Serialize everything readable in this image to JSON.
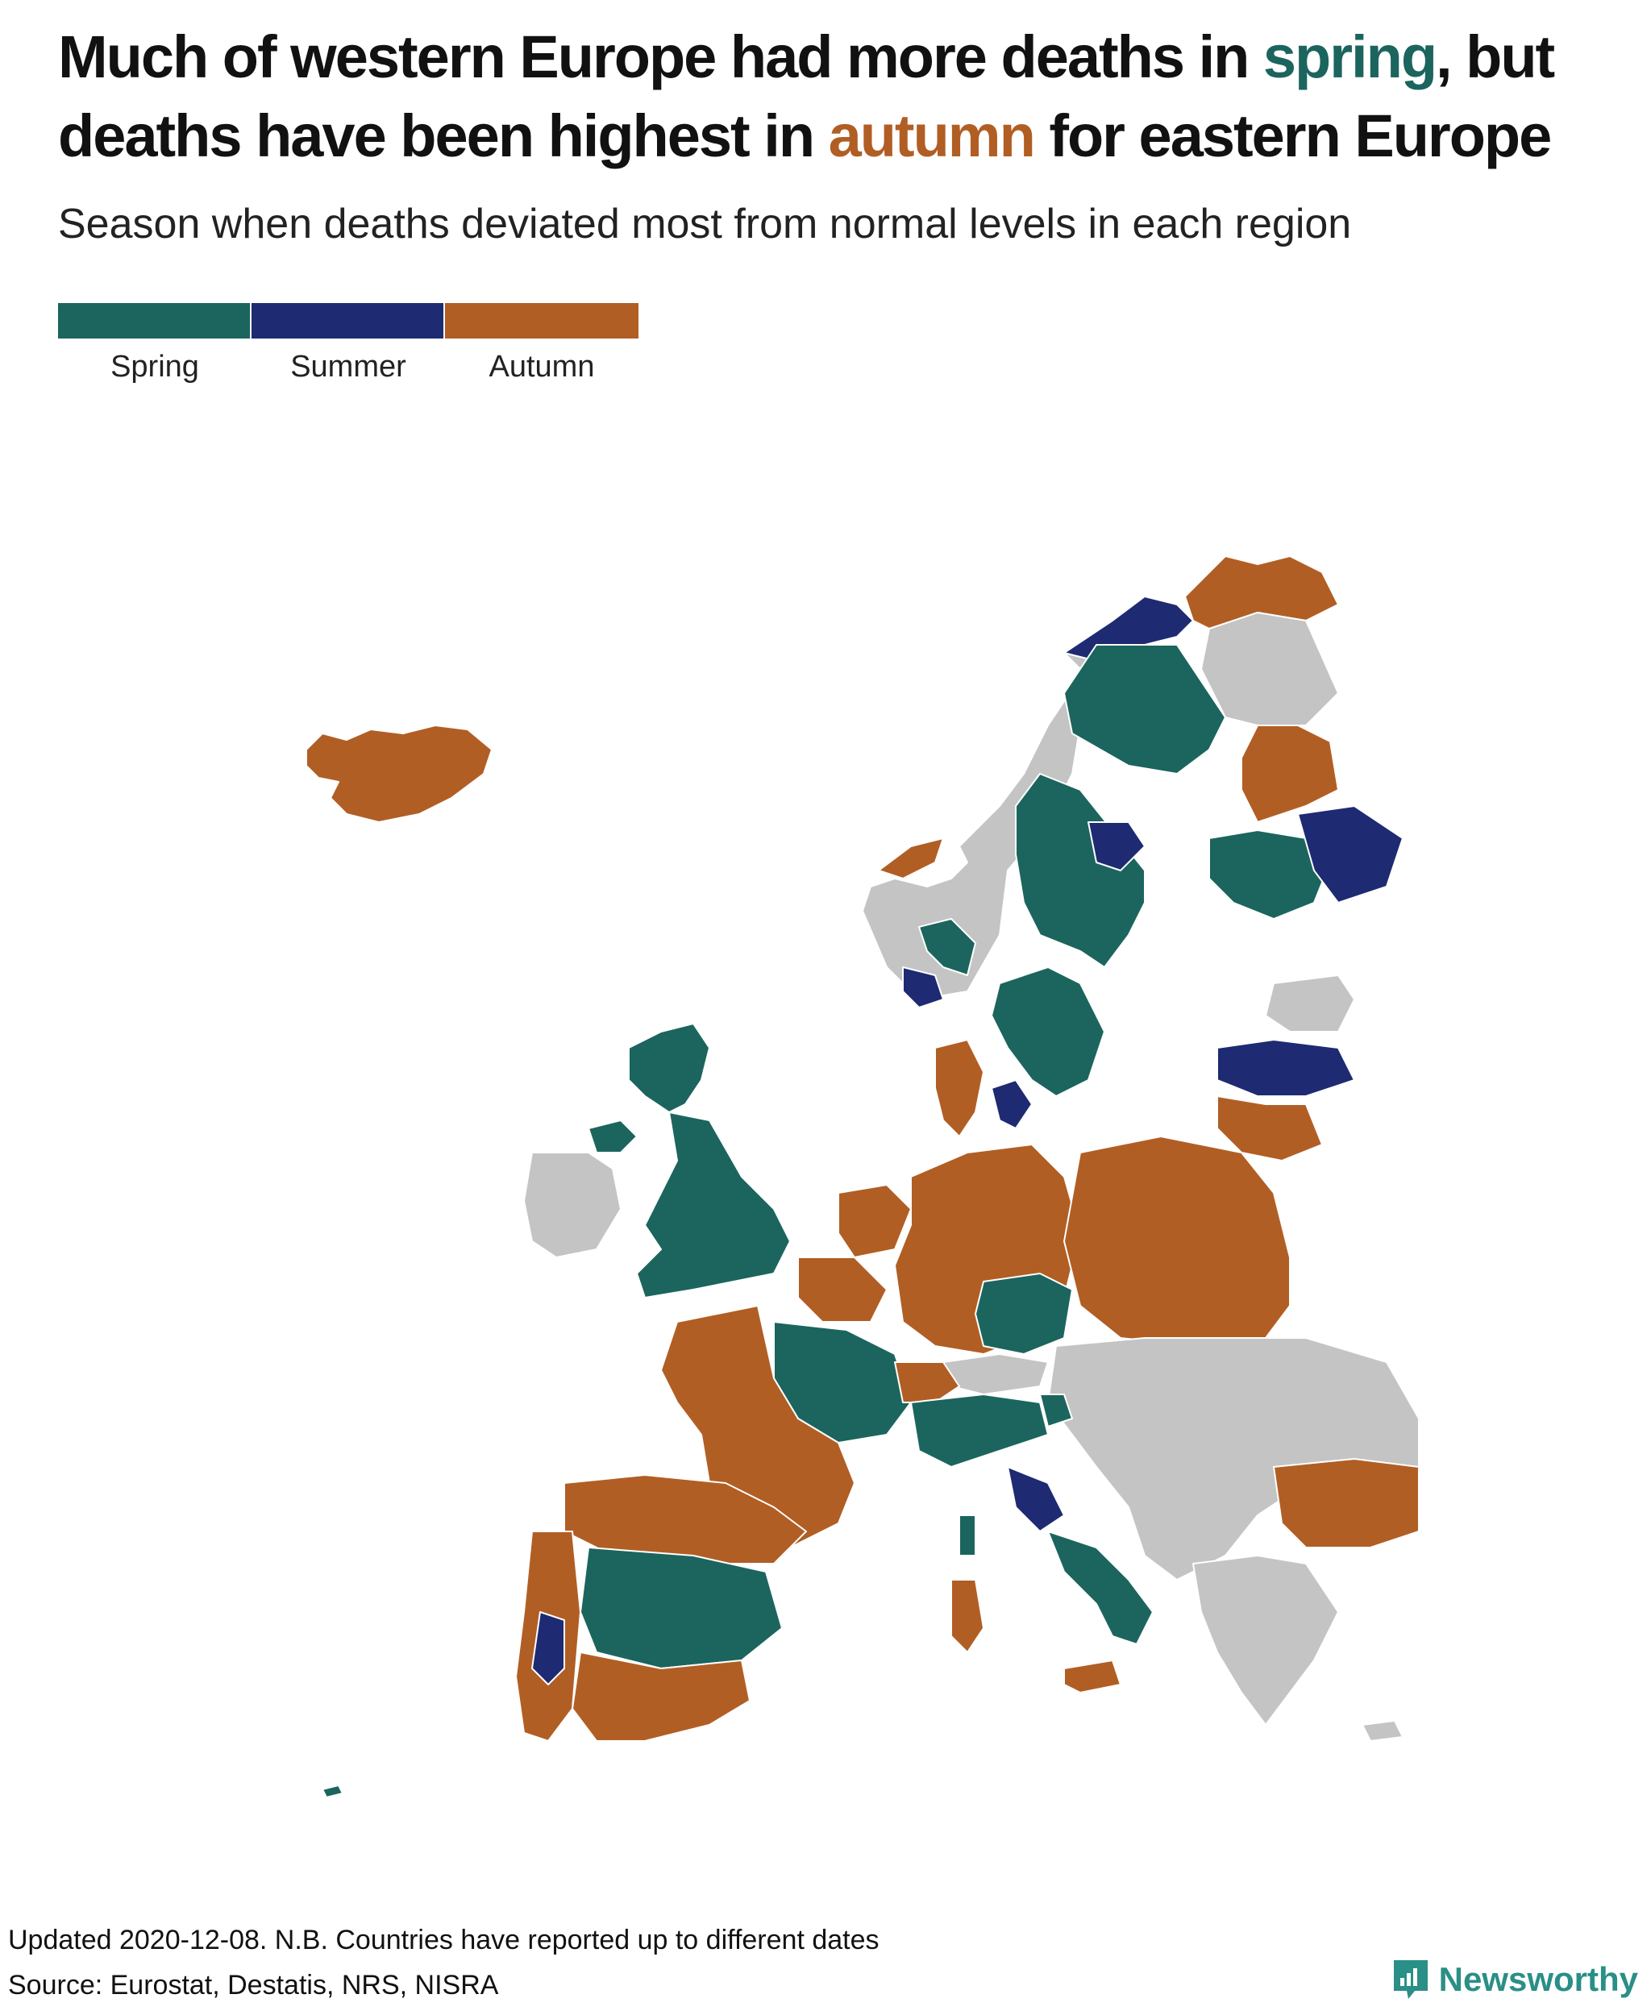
{
  "title": {
    "line1_a": "Much of western Europe had more deaths in ",
    "line1_spring": "spring",
    "line1_b": ", but",
    "line2_a": "deaths have been highest in ",
    "line2_autumn": "autumn",
    "line2_b": " for eastern Europe"
  },
  "subtitle": "Season when deaths deviated most from normal levels in each region",
  "legend": {
    "items": [
      {
        "label": "Spring",
        "color": "#1b655e"
      },
      {
        "label": "Summer",
        "color": "#1e2a72"
      },
      {
        "label": "Autumn",
        "color": "#b15e24"
      }
    ],
    "no_data_color": "#c4c4c4"
  },
  "map": {
    "regions": [
      {
        "name": "Iceland",
        "season": "autumn"
      },
      {
        "name": "Norway north",
        "season": "no-data"
      },
      {
        "name": "Norway Finnmark",
        "season": "summer"
      },
      {
        "name": "Norway west",
        "season": "autumn"
      },
      {
        "name": "Norway east",
        "season": "spring"
      },
      {
        "name": "Norway south",
        "season": "summer"
      },
      {
        "name": "Sweden north",
        "season": "spring"
      },
      {
        "name": "Sweden central",
        "season": "spring"
      },
      {
        "name": "Sweden mid-east",
        "season": "summer"
      },
      {
        "name": "Sweden south",
        "season": "spring"
      },
      {
        "name": "Finland Lapland",
        "season": "autumn"
      },
      {
        "name": "Finland west",
        "season": "autumn"
      },
      {
        "name": "Finland central",
        "season": "spring"
      },
      {
        "name": "Finland east",
        "season": "summer"
      },
      {
        "name": "Estonia",
        "season": "no-data"
      },
      {
        "name": "Latvia",
        "season": "summer"
      },
      {
        "name": "Lithuania",
        "season": "autumn"
      },
      {
        "name": "Denmark Jutland",
        "season": "autumn"
      },
      {
        "name": "Denmark islands",
        "season": "summer"
      },
      {
        "name": "Scotland",
        "season": "spring"
      },
      {
        "name": "England and Wales",
        "season": "spring"
      },
      {
        "name": "Northern Ireland",
        "season": "spring"
      },
      {
        "name": "Ireland",
        "season": "no-data"
      },
      {
        "name": "Netherlands",
        "season": "autumn"
      },
      {
        "name": "Belgium",
        "season": "autumn"
      },
      {
        "name": "Germany",
        "season": "autumn"
      },
      {
        "name": "Poland",
        "season": "autumn"
      },
      {
        "name": "Czechia",
        "season": "spring"
      },
      {
        "name": "Austria",
        "season": "no-data"
      },
      {
        "name": "France north-east",
        "season": "spring"
      },
      {
        "name": "France",
        "season": "autumn"
      },
      {
        "name": "Switzerland",
        "season": "autumn"
      },
      {
        "name": "Italy north",
        "season": "spring"
      },
      {
        "name": "Italy centre",
        "season": "summer"
      },
      {
        "name": "Italy south",
        "season": "spring"
      },
      {
        "name": "Sardinia",
        "season": "autumn"
      },
      {
        "name": "Corsica",
        "season": "spring"
      },
      {
        "name": "Sicily",
        "season": "autumn"
      },
      {
        "name": "Spain north",
        "season": "autumn"
      },
      {
        "name": "Spain centre",
        "season": "spring"
      },
      {
        "name": "Spain south",
        "season": "autumn"
      },
      {
        "name": "Portugal",
        "season": "autumn"
      },
      {
        "name": "Portugal central",
        "season": "summer"
      },
      {
        "name": "Hungary and Balkans",
        "season": "no-data"
      },
      {
        "name": "Slovenia",
        "season": "spring"
      },
      {
        "name": "Bulgaria",
        "season": "autumn"
      },
      {
        "name": "Greece",
        "season": "no-data"
      },
      {
        "name": "Cyprus",
        "season": "no-data"
      },
      {
        "name": "Madeira",
        "season": "spring"
      }
    ]
  },
  "footer": {
    "updated": "Updated 2020-12-08. N.B. Countries have reported up to different dates",
    "source": "Source: Eurostat, Destatis, NRS, NISRA"
  },
  "brand": {
    "name": "Newsworthy",
    "icon": "newsworthy-logo-icon",
    "color": "#2a8f86"
  }
}
